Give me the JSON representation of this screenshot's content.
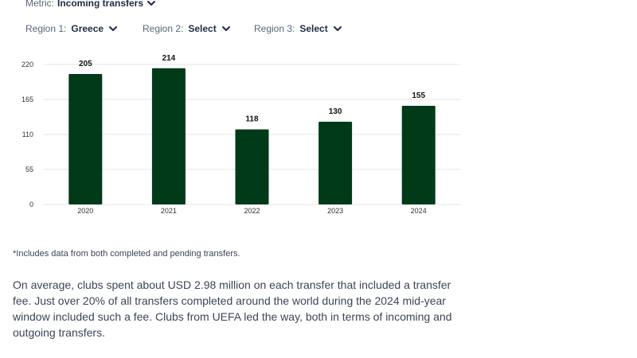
{
  "filters": {
    "metric_label": "Metric:",
    "metric_value": "Incoming transfers",
    "region1_label": "Region 1:",
    "region1_value": "Greece",
    "region2_label": "Region 2:",
    "region2_value": "Select",
    "region3_label": "Region 3:",
    "region3_value": "Select"
  },
  "chart_data": {
    "type": "bar",
    "categories": [
      "2020",
      "2021",
      "2022",
      "2023",
      "2024"
    ],
    "values": [
      205,
      214,
      118,
      130,
      155
    ],
    "data_labels": [
      "205",
      "214",
      "118",
      "130",
      "155"
    ],
    "yticks": [
      0,
      55,
      110,
      165,
      220
    ],
    "ylim": [
      0,
      220
    ],
    "bar_color": "#003a18",
    "grid": true,
    "title": "",
    "xlabel": "",
    "ylabel": ""
  },
  "footnote": "*Includes data from both completed and pending transfers.",
  "paragraph": "On average, clubs spent about USD 2.98 million on each transfer that included a transfer fee. Just over 20% of all transfers completed around the world during the 2024 mid-year window included such a fee. Clubs from UEFA led the way, both in terms of incoming and outgoing transfers."
}
